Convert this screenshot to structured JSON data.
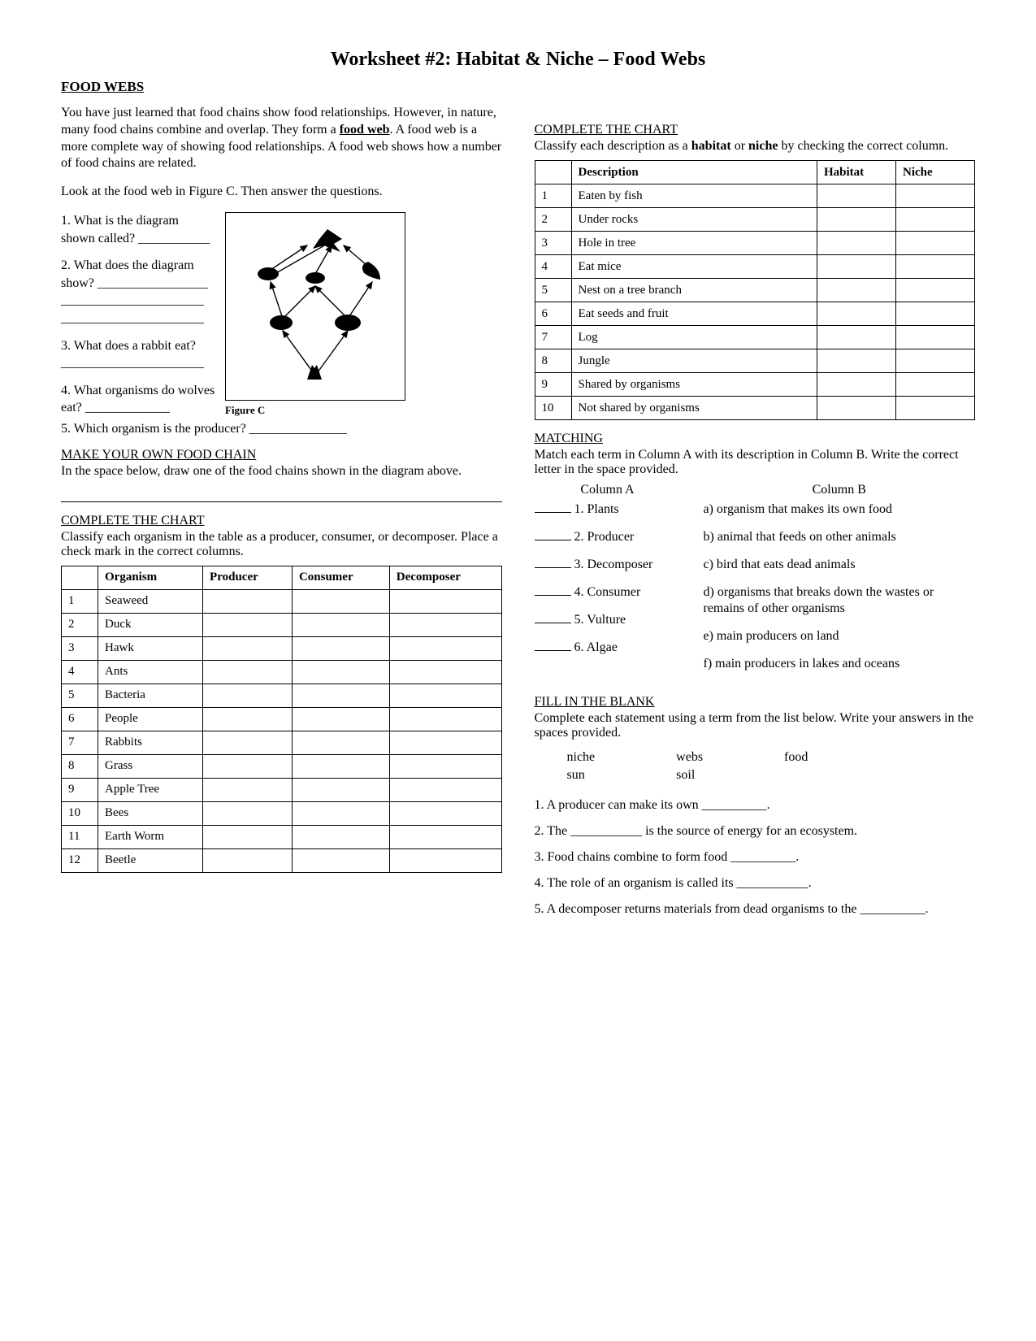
{
  "title": "Worksheet #2: Habitat & Niche – Food Webs",
  "left": {
    "heading": "FOOD WEBS",
    "intro_before_bold": "You have just learned that food chains show food relationships.  However, in nature, many food chains combine and overlap.  They form a ",
    "intro_bold": "food web",
    "intro_after_bold": ".  A food web is a more complete way of showing food relationships.  A food web shows how a number of food chains are related.",
    "lookat": "Look at the food web in Figure C.  Then answer the questions.",
    "questions": [
      "1.  What is the diagram shown called? ___________",
      "2.  What does the diagram show? _________________",
      "3.  What does a rabbit eat?",
      "4.  What organisms do wolves eat? _____________",
      "5.  Which organism is the producer? _______________"
    ],
    "figcap": "Figure C",
    "makeHead": "MAKE YOUR OWN FOOD CHAIN",
    "makeText": "In the space below, draw one of the food chains shown in the diagram above.",
    "chartHead": "COMPLETE THE CHART",
    "chartText": "Classify each organism in the table as a producer, consumer, or decomposer.  Place a check mark in the correct columns.",
    "table1": {
      "cols": [
        "",
        "Organism",
        "Producer",
        "Consumer",
        "Decomposer"
      ],
      "rows": [
        [
          "1",
          "Seaweed"
        ],
        [
          "2",
          "Duck"
        ],
        [
          "3",
          "Hawk"
        ],
        [
          "4",
          "Ants"
        ],
        [
          "5",
          "Bacteria"
        ],
        [
          "6",
          "People"
        ],
        [
          "7",
          "Rabbits"
        ],
        [
          "8",
          "Grass"
        ],
        [
          "9",
          "Apple Tree"
        ],
        [
          "10",
          "Bees"
        ],
        [
          "11",
          "Earth Worm"
        ],
        [
          "12",
          "Beetle"
        ]
      ]
    }
  },
  "right": {
    "chartHead": "COMPLETE THE CHART",
    "chartText_before": "Classify each description as a ",
    "chartText_b1": "habitat",
    "chartText_mid": " or ",
    "chartText_b2": "niche",
    "chartText_after": " by checking the correct column.",
    "table2": {
      "cols": [
        "",
        "Description",
        "Habitat",
        "Niche"
      ],
      "rows": [
        [
          "1",
          "Eaten by fish"
        ],
        [
          "2",
          "Under rocks"
        ],
        [
          "3",
          "Hole in tree"
        ],
        [
          "4",
          "Eat mice"
        ],
        [
          "5",
          "Nest on a tree branch"
        ],
        [
          "6",
          "Eat seeds and fruit"
        ],
        [
          "7",
          "Log"
        ],
        [
          "8",
          "Jungle"
        ],
        [
          "9",
          "Shared by organisms"
        ],
        [
          "10",
          "Not shared by organisms"
        ]
      ]
    },
    "matchHead": "MATCHING",
    "matchText": "Match each term in Column A with its description in Column B.  Write the correct letter in the space provided.",
    "colAHead": "Column A",
    "colBHead": "Column B",
    "colA": [
      "1. Plants",
      "2. Producer",
      "3. Decomposer",
      "4. Consumer",
      "5. Vulture",
      "6. Algae"
    ],
    "colB": [
      "a) organism that makes its own food",
      "b) animal that feeds on other animals",
      "c) bird that eats dead animals",
      "d) organisms that breaks down the wastes or remains of other organisms",
      "e) main producers on land",
      "f) main producers in lakes and oceans"
    ],
    "fillHead": "FILL IN THE BLANK",
    "fillText": "Complete each statement using a term from the list below.  Write your answers in the spaces provided.",
    "wordbank": {
      "c1": [
        "niche",
        "sun"
      ],
      "c2": [
        "webs",
        "soil"
      ],
      "c3": [
        "food"
      ]
    },
    "fill": [
      "1.  A producer can make its own __________.",
      "2.  The ___________ is the source of energy for an ecosystem.",
      "3.  Food chains combine to form food __________.",
      "4.  The role of an organism is called its ___________.",
      "5.  A decomposer returns materials from dead organisms to the __________."
    ]
  }
}
